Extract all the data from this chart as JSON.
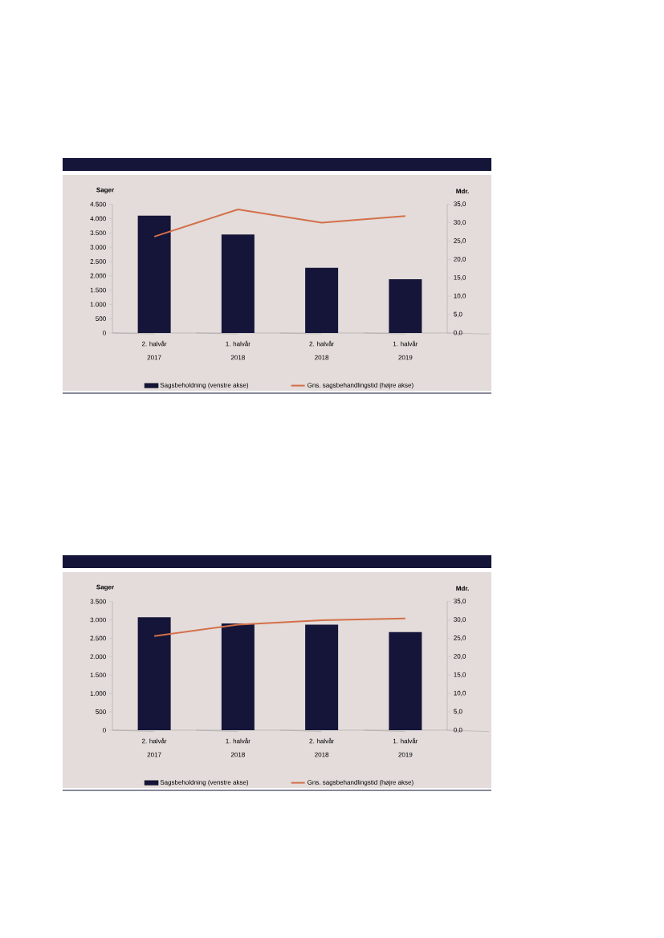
{
  "chart_data": [
    {
      "type": "bar",
      "categories": [
        "2. halvår 2017",
        "1. halvår 2018",
        "2. halvår 2018",
        "1. halvår 2019"
      ],
      "series": [
        {
          "name": "Sagsbeholdning (venstre akse)",
          "color": "#141539",
          "values": [
            4100,
            3440,
            2280,
            1880
          ]
        },
        {
          "name": "Gns. sagsbehandlingstid (højre akse)",
          "type": "line",
          "axis": "y2",
          "color": "#d4704a",
          "values": [
            26.2,
            33.6,
            30.0,
            31.8
          ]
        }
      ],
      "ylabel": "Sager",
      "y2label": "Mdr.",
      "ylim": [
        0,
        4500
      ],
      "yticks": [
        0,
        {
          "value": 500,
          "label": "500"
        },
        {
          "value": 1000,
          "label": "1.000"
        },
        {
          "value": 1500,
          "label": "1.500"
        },
        {
          "value": 2000,
          "label": "2.000"
        },
        {
          "value": 2500,
          "label": "2.500"
        },
        {
          "value": 3000,
          "label": "3.000"
        },
        {
          "value": 3500,
          "label": "3.500"
        },
        {
          "value": 4000,
          "label": "4.000"
        },
        {
          "value": 4500,
          "label": "4.500"
        }
      ],
      "y2lim": [
        0,
        35
      ],
      "y2ticks": [
        {
          "value": 0,
          "label": "0,0"
        },
        {
          "value": 5,
          "label": "5,0"
        },
        {
          "value": 10,
          "label": "10,0"
        },
        {
          "value": 15,
          "label": "15,0"
        },
        {
          "value": 20,
          "label": "20,0"
        },
        {
          "value": 25,
          "label": "25,0"
        },
        {
          "value": 30,
          "label": "30,0"
        },
        {
          "value": 35,
          "label": "35,0"
        }
      ],
      "legend": "bottom",
      "grid": false
    },
    {
      "type": "bar",
      "categories": [
        "2. halvår 2017",
        "1. halvår 2018",
        "2. halvår 2018",
        "1. halvår 2019"
      ],
      "series": [
        {
          "name": "Sagsbeholdning (venstre akse)",
          "color": "#141539",
          "values": [
            3070,
            2900,
            2870,
            2670
          ]
        },
        {
          "name": "Gns. sagsbehandlingstid (højre akse)",
          "type": "line",
          "axis": "y2",
          "color": "#d4704a",
          "values": [
            25.6,
            28.7,
            29.9,
            30.4
          ]
        }
      ],
      "ylabel": "Sager",
      "y2label": "Mdr.",
      "ylim": [
        0,
        3500
      ],
      "yticks": [
        0,
        {
          "value": 500,
          "label": "500"
        },
        {
          "value": 1000,
          "label": "1.000"
        },
        {
          "value": 1500,
          "label": "1.500"
        },
        {
          "value": 2000,
          "label": "2.000"
        },
        {
          "value": 2500,
          "label": "2.500"
        },
        {
          "value": 3000,
          "label": "3.000"
        },
        {
          "value": 3500,
          "label": "3.500"
        }
      ],
      "y2lim": [
        0,
        35
      ],
      "y2ticks": [
        {
          "value": 0,
          "label": "0,0"
        },
        {
          "value": 5,
          "label": "5,0"
        },
        {
          "value": 10,
          "label": "10,0"
        },
        {
          "value": 15,
          "label": "15,0"
        },
        {
          "value": 20,
          "label": "20,0"
        },
        {
          "value": 25,
          "label": "25,0"
        },
        {
          "value": 30,
          "label": "30,0"
        },
        {
          "value": 35,
          "label": "35,0"
        }
      ],
      "legend": "bottom",
      "grid": false
    }
  ]
}
